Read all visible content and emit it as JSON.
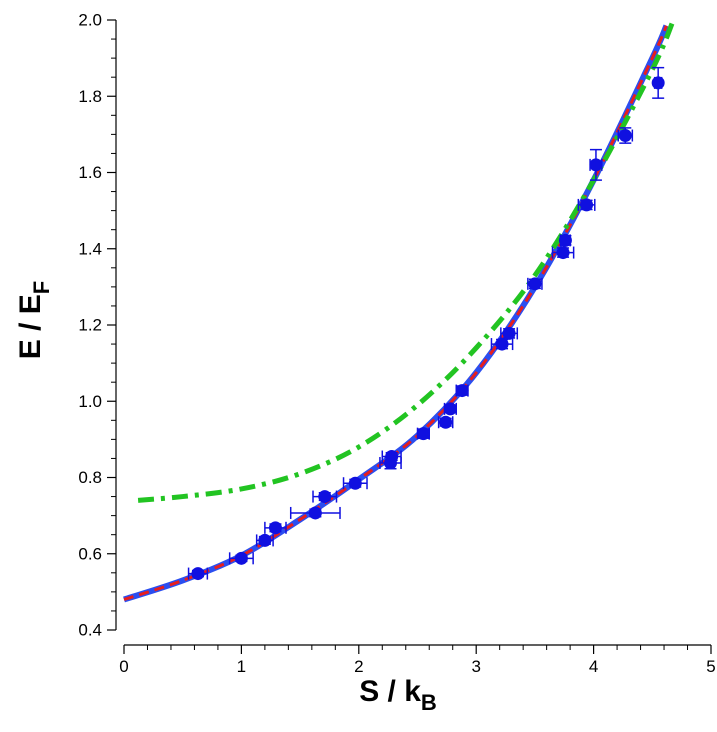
{
  "chart_data": {
    "type": "scatter",
    "xlabel": {
      "main": "S / k",
      "sub": "B"
    },
    "ylabel": {
      "main": "E / E",
      "sub": "F"
    },
    "xlim": [
      0,
      5
    ],
    "ylim": [
      0.4,
      2.0
    ],
    "xticks": [
      "0",
      "1",
      "2",
      "3",
      "4",
      "5"
    ],
    "yticks": [
      "0.4",
      "0.6",
      "0.8",
      "1.0",
      "1.2",
      "1.4",
      "1.6",
      "1.8",
      "2.0"
    ],
    "grid": false,
    "legend": "none",
    "series": [
      {
        "kind": "points",
        "color": "#1010e0",
        "points": [
          {
            "x": 0.63,
            "y": 0.548,
            "xerr": 0.08,
            "yerr": 0.008
          },
          {
            "x": 1.0,
            "y": 0.588,
            "xerr": 0.1,
            "yerr": 0.008
          },
          {
            "x": 1.2,
            "y": 0.635,
            "xerr": 0.07,
            "yerr": 0.01
          },
          {
            "x": 1.29,
            "y": 0.668,
            "xerr": 0.09,
            "yerr": 0.01
          },
          {
            "x": 1.63,
            "y": 0.707,
            "xerr": 0.21,
            "yerr": 0.01
          },
          {
            "x": 1.71,
            "y": 0.75,
            "xerr": 0.1,
            "yerr": 0.01
          },
          {
            "x": 1.97,
            "y": 0.785,
            "xerr": 0.1,
            "yerr": 0.01
          },
          {
            "x": 2.27,
            "y": 0.838,
            "xerr": 0.09,
            "yerr": 0.015
          },
          {
            "x": 2.28,
            "y": 0.855,
            "xerr": 0.08,
            "yerr": 0.01
          },
          {
            "x": 2.55,
            "y": 0.915,
            "xerr": 0.05,
            "yerr": 0.012
          },
          {
            "x": 2.74,
            "y": 0.945,
            "xerr": 0.06,
            "yerr": 0.01
          },
          {
            "x": 2.78,
            "y": 0.98,
            "xerr": 0.05,
            "yerr": 0.01
          },
          {
            "x": 2.88,
            "y": 1.028,
            "xerr": 0.05,
            "yerr": 0.012
          },
          {
            "x": 3.22,
            "y": 1.15,
            "xerr": 0.09,
            "yerr": 0.012
          },
          {
            "x": 3.28,
            "y": 1.178,
            "xerr": 0.07,
            "yerr": 0.012
          },
          {
            "x": 3.5,
            "y": 1.308,
            "xerr": 0.06,
            "yerr": 0.012
          },
          {
            "x": 3.74,
            "y": 1.39,
            "xerr": 0.09,
            "yerr": 0.012
          },
          {
            "x": 3.76,
            "y": 1.422,
            "xerr": 0.04,
            "yerr": 0.012
          },
          {
            "x": 3.94,
            "y": 1.515,
            "xerr": 0.07,
            "yerr": 0.012
          },
          {
            "x": 4.02,
            "y": 1.62,
            "xerr": 0.05,
            "yerr": 0.04
          },
          {
            "x": 4.27,
            "y": 1.697,
            "xerr": 0.06,
            "yerr": 0.02
          },
          {
            "x": 4.55,
            "y": 1.835,
            "xerr": 0.03,
            "yerr": 0.04
          }
        ]
      },
      {
        "kind": "curve",
        "style": "solid",
        "color": "#2b4ef0",
        "x": [
          0,
          0.5,
          1.0,
          1.5,
          2.0,
          2.5,
          3.0,
          3.5,
          4.0,
          4.5,
          4.62
        ],
        "y": [
          0.48,
          0.53,
          0.595,
          0.69,
          0.795,
          0.91,
          1.075,
          1.3,
          1.58,
          1.9,
          1.985
        ]
      },
      {
        "kind": "curve",
        "style": "dashed",
        "color": "#e61e1e",
        "x": [
          0,
          0.5,
          1.0,
          1.5,
          2.0,
          2.5,
          3.0,
          3.5,
          4.0,
          4.5,
          4.62
        ],
        "y": [
          0.48,
          0.53,
          0.595,
          0.69,
          0.795,
          0.91,
          1.075,
          1.3,
          1.58,
          1.9,
          1.985
        ]
      },
      {
        "kind": "curve",
        "style": "dashdot",
        "color": "#22c422",
        "x": [
          0.12,
          0.5,
          1.0,
          1.5,
          2.0,
          2.5,
          3.0,
          3.5,
          4.0,
          4.5,
          4.68
        ],
        "y": [
          0.74,
          0.75,
          0.77,
          0.81,
          0.88,
          0.99,
          1.14,
          1.33,
          1.58,
          1.87,
          2.0
        ]
      }
    ]
  }
}
